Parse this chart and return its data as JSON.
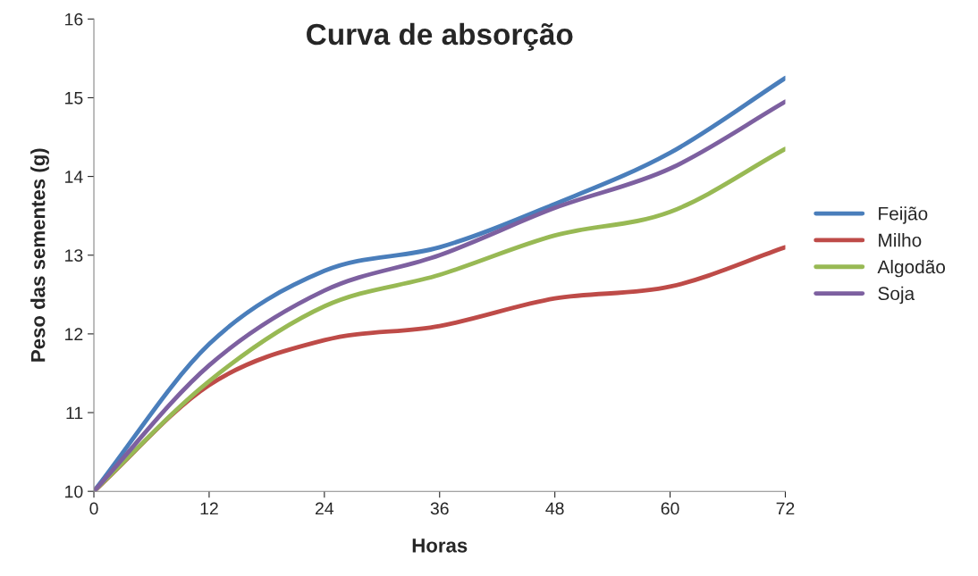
{
  "chart_data": {
    "type": "line",
    "title": "Curva de absorção",
    "xlabel": "Horas",
    "ylabel": "Peso das sementes (g)",
    "x": [
      0,
      12,
      24,
      36,
      48,
      60,
      72
    ],
    "xlim": [
      0,
      72
    ],
    "xticks": [
      0,
      12,
      24,
      36,
      48,
      60,
      72
    ],
    "ylim": [
      10,
      16
    ],
    "yticks": [
      10,
      11,
      12,
      13,
      14,
      15,
      16
    ],
    "grid": false,
    "legend": "right",
    "marker": "none",
    "line_style": "solid",
    "series": [
      {
        "name": "Feijão",
        "color": "#4a7ebb",
        "values": [
          10,
          11.87,
          12.8,
          13.1,
          13.65,
          14.3,
          15.25
        ]
      },
      {
        "name": "Milho",
        "color": "#be4b48",
        "values": [
          10,
          11.35,
          11.92,
          12.1,
          12.45,
          12.6,
          13.1
        ]
      },
      {
        "name": "Algodão",
        "color": "#98b954",
        "values": [
          10,
          11.4,
          12.35,
          12.75,
          13.25,
          13.55,
          14.35
        ]
      },
      {
        "name": "Soja",
        "color": "#7d60a0",
        "values": [
          10,
          11.6,
          12.55,
          13.0,
          13.6,
          14.1,
          14.95
        ]
      }
    ]
  }
}
